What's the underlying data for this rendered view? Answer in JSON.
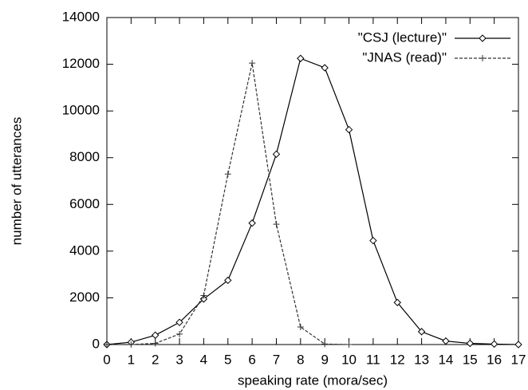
{
  "chart_data": {
    "type": "line",
    "xlabel": "speaking rate (mora/sec)",
    "ylabel": "number of utterances",
    "x": [
      0,
      1,
      2,
      3,
      4,
      5,
      6,
      7,
      8,
      9,
      10,
      11,
      12,
      13,
      14,
      15,
      16,
      17
    ],
    "series": [
      {
        "name": "\"CSJ (lecture)\"",
        "color": "#000000",
        "dash": "solid",
        "marker": "diamond",
        "values": [
          0,
          100,
          400,
          950,
          1950,
          2750,
          5200,
          8150,
          12250,
          11850,
          9200,
          4450,
          1800,
          550,
          150,
          50,
          20,
          0
        ]
      },
      {
        "name": "\"JNAS (read)\"",
        "color": "#333333",
        "dash": "dashed",
        "marker": "plus",
        "values": [
          0,
          0,
          50,
          450,
          2100,
          7300,
          12050,
          5150,
          750,
          20,
          0,
          null,
          null,
          null,
          null,
          null,
          null,
          null
        ]
      }
    ],
    "xlim": [
      0,
      17
    ],
    "xticks": [
      0,
      1,
      2,
      3,
      4,
      5,
      6,
      7,
      8,
      9,
      10,
      11,
      12,
      13,
      14,
      15,
      16,
      17
    ],
    "ylim": [
      0,
      14000
    ],
    "yticks": [
      0,
      2000,
      4000,
      6000,
      8000,
      10000,
      12000,
      14000
    ],
    "grid": false,
    "legend": "upper right"
  }
}
